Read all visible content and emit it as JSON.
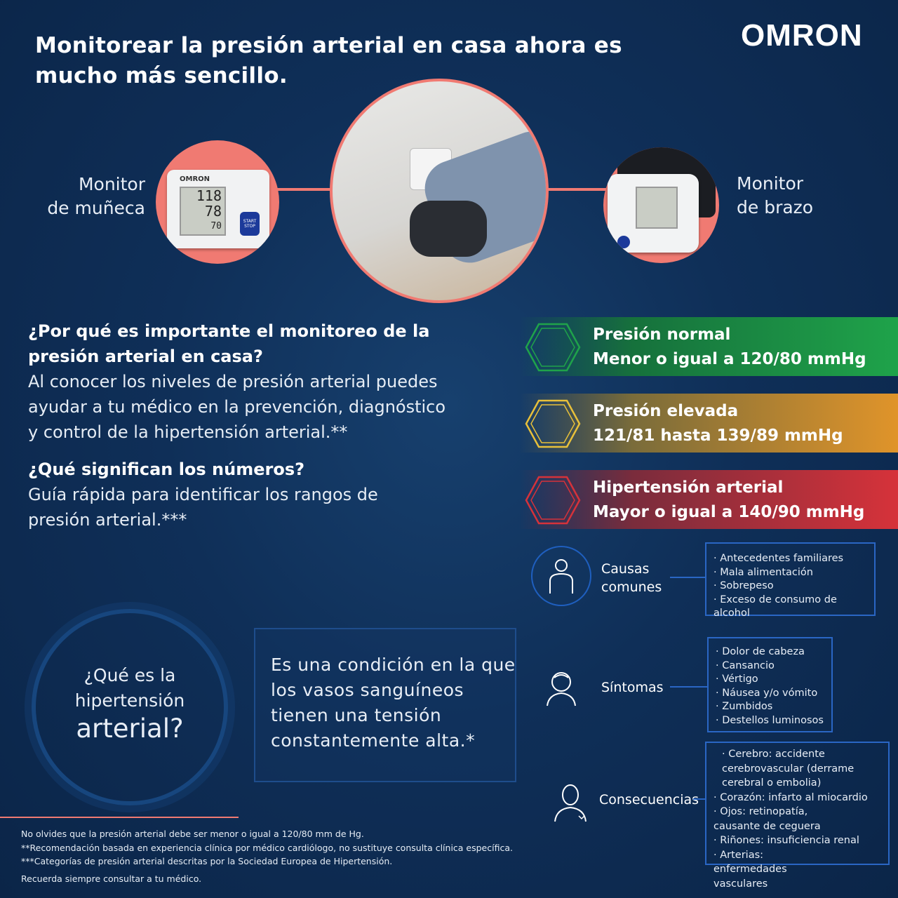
{
  "header": {
    "title": "Monitorear la presión arterial en casa ahora es mucho más sencillo.",
    "logo": "OMRON"
  },
  "devices": {
    "wrist_label": [
      "Monitor",
      "de muñeca"
    ],
    "arm_label": [
      "Monitor",
      "de brazo"
    ],
    "display": {
      "sys": "118",
      "dia": "78",
      "pulse": "70",
      "button": "START STOP"
    }
  },
  "why": {
    "heading": "¿Por qué es importante el monitoreo de la presión arterial en casa?",
    "body": "Al conocer los niveles de presión arterial puedes ayudar a tu médico en la prevención, diagnóstico y control de la hipertensión arterial.**"
  },
  "numbers": {
    "heading": "¿Qué significan los números?",
    "body": "Guía rápida para identificar los rangos de presión arterial.***"
  },
  "ranges": [
    {
      "title": "Presión normal",
      "value": "Menor o igual a 120/80 mmHg",
      "color": "#1fa34a"
    },
    {
      "title": "Presión elevada",
      "value": "121/81 hasta 139/89 mmHg",
      "color": "#e0a42a"
    },
    {
      "title": "Hipertensión arterial",
      "value": "Mayor o igual a 140/90 mmHg",
      "color": "#d6323a"
    }
  ],
  "what": {
    "question": [
      "¿Qué es la",
      "hipertensión",
      "arterial?"
    ],
    "answer": "Es una condición en la que los vasos sanguíneos tienen una tensión constantemente alta.*"
  },
  "causes": {
    "label": "Causas comunes",
    "items": [
      "Antecedentes familiares",
      "Mala alimentación",
      "Sobrepeso",
      "Exceso de consumo de alcohol"
    ]
  },
  "symptoms": {
    "label": "Síntomas",
    "items": [
      "Dolor de cabeza",
      "Cansancio",
      "Vértigo",
      "Náusea y/o vómito",
      "Zumbidos",
      "Destellos luminosos"
    ]
  },
  "consequences": {
    "label": "Consecuencias",
    "items": [
      "Cerebro: accidente cerebrovascular (derrame cerebral o embolia)",
      "Corazón: infarto al miocardio",
      "Ojos: retinopatía, causante de ceguera",
      "Riñones: insuficiencia renal",
      "Arterias: enfermedades vasculares"
    ]
  },
  "footer": [
    "No olvides que la presión arterial debe ser menor o igual a 120/80 mm de Hg.",
    "**Recomendación basada en experiencia clínica por médico cardiólogo, no sustituye consulta clínica específica.",
    "***Categorías de presión arterial descritas por la Sociedad Europea de Hipertensión.",
    "Recuerda siempre consultar a tu médico."
  ],
  "colors": {
    "accent": "#f07a72",
    "line_blue": "#2a66c4",
    "background": "#0f2f58"
  }
}
